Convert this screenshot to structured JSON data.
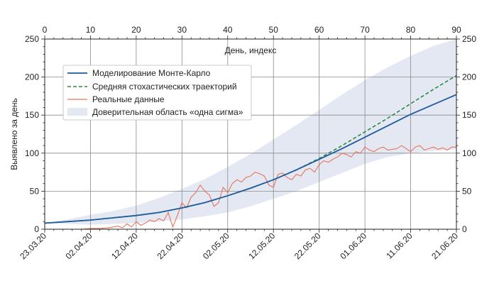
{
  "chart_data": {
    "type": "line",
    "title": "",
    "ylabel": "Выявлено за день",
    "x_top_label": "День, индекс",
    "x_top_range": [
      0,
      90
    ],
    "x_top_ticks": [
      0,
      10,
      20,
      30,
      40,
      50,
      60,
      70,
      80,
      90
    ],
    "ylim": [
      0,
      250
    ],
    "y_ticks": [
      0,
      50,
      100,
      150,
      200,
      250
    ],
    "grid": true,
    "legend_position": "upper-left",
    "date_tick_labels": [
      "23.03.20",
      "02.04.20",
      "12.04.20",
      "22.04.20",
      "02.05.20",
      "12.05.20",
      "22.05.20",
      "01.06.20",
      "11.06.20",
      "21.06.20"
    ],
    "x": [
      0,
      5,
      10,
      15,
      20,
      25,
      30,
      35,
      40,
      45,
      50,
      55,
      60,
      65,
      70,
      75,
      80,
      85,
      90
    ],
    "series": [
      {
        "name": "Моделирование Монте-Карло",
        "style": "solid",
        "color": "#1f5a9c",
        "values": [
          8,
          10,
          12,
          15,
          18,
          22,
          28,
          35,
          44,
          54,
          65,
          78,
          92,
          106,
          121,
          136,
          151,
          164,
          177
        ]
      },
      {
        "name": "Средняя стохастических траекторий",
        "style": "dashed",
        "color": "#2e8b3e",
        "values": [
          8,
          10,
          12,
          15,
          18,
          22,
          28,
          35,
          44,
          54,
          65,
          78,
          93,
          110,
          128,
          146,
          165,
          184,
          202
        ]
      },
      {
        "name": "Реальные данные",
        "style": "solid-thin",
        "color": "#e8735a",
        "x": [
          0,
          8,
          10,
          12,
          14,
          16,
          17,
          18,
          19,
          20,
          21,
          22,
          23,
          24,
          25,
          26,
          27,
          28,
          29,
          30,
          31,
          32,
          33,
          34,
          35,
          36,
          37,
          38,
          39,
          40,
          41,
          42,
          43,
          44,
          45,
          46,
          47,
          48,
          49,
          50,
          51,
          52,
          53,
          54,
          55,
          56,
          57,
          58,
          59,
          60,
          61,
          62,
          63,
          64,
          65,
          66,
          67,
          68,
          69,
          70,
          71,
          72,
          73,
          74,
          75,
          76,
          77,
          78,
          79,
          80,
          81,
          82,
          83,
          84,
          85,
          86,
          87,
          88,
          89,
          90
        ],
        "values": [
          0,
          0,
          1,
          1,
          2,
          4,
          2,
          7,
          3,
          10,
          5,
          8,
          12,
          10,
          14,
          11,
          22,
          3,
          18,
          35,
          28,
          42,
          48,
          58,
          50,
          45,
          30,
          35,
          55,
          48,
          60,
          65,
          62,
          68,
          70,
          75,
          73,
          70,
          58,
          55,
          72,
          74,
          68,
          65,
          72,
          70,
          78,
          80,
          75,
          85,
          90,
          88,
          92,
          95,
          100,
          98,
          95,
          102,
          100,
          108,
          104,
          102,
          106,
          108,
          104,
          105,
          106,
          110,
          106,
          102,
          108,
          110,
          104,
          106,
          108,
          105,
          107,
          104,
          108,
          108
        ]
      },
      {
        "name": "Доверительная область «одна сигма»",
        "style": "band",
        "color": "#e3e8f3",
        "lower": [
          8,
          7,
          6,
          7,
          8,
          10,
          13,
          17,
          22,
          30,
          40,
          50,
          62,
          74,
          86,
          95,
          100,
          103,
          105
        ],
        "upper": [
          8,
          13,
          19,
          24,
          31,
          41,
          53,
          66,
          82,
          99,
          118,
          137,
          157,
          177,
          196,
          213,
          228,
          241,
          252
        ]
      }
    ]
  }
}
